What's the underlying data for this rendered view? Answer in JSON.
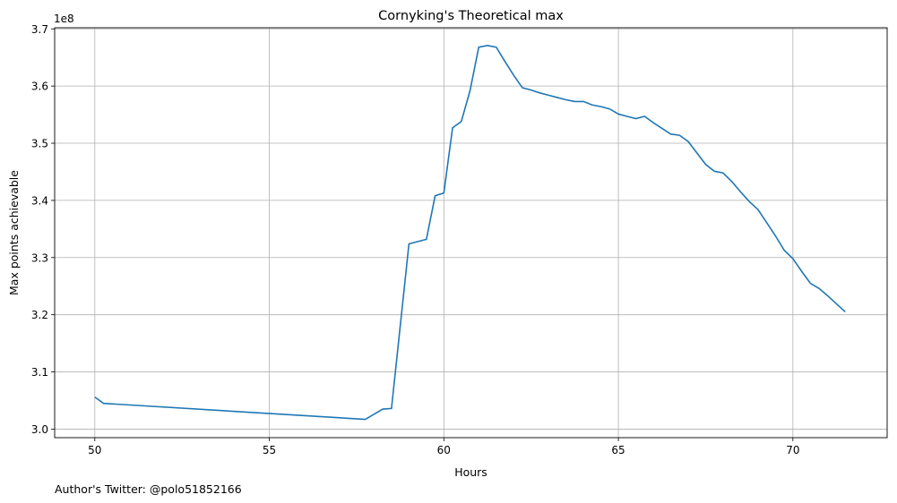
{
  "chart_data": {
    "type": "line",
    "title": "Cornyking's Theoretical max",
    "xlabel": "Hours",
    "ylabel": "Max points achievable",
    "y_offset_label": "1e8",
    "y_scale": 100000000,
    "xlim": [
      48.85,
      72.7
    ],
    "ylim": [
      2.985,
      3.702
    ],
    "xticks": [
      50,
      55,
      60,
      65,
      70
    ],
    "yticks": [
      3.0,
      3.1,
      3.2,
      3.3,
      3.4,
      3.5,
      3.6,
      3.7
    ],
    "ytick_labels": [
      "3.0",
      "3.1",
      "3.2",
      "3.3",
      "3.4",
      "3.5",
      "3.6",
      "3.7"
    ],
    "grid": true,
    "line_color": "#1f77b4",
    "series": [
      {
        "x": [
          50.0,
          50.25,
          57.75,
          58.25,
          58.5,
          59.0,
          59.5,
          59.75,
          60.0,
          60.25,
          60.5,
          60.75,
          61.0,
          61.25,
          61.5,
          61.75,
          62.0,
          62.25,
          62.5,
          62.75,
          63.0,
          63.25,
          63.5,
          63.75,
          64.0,
          64.25,
          64.5,
          64.75,
          65.0,
          65.25,
          65.5,
          65.75,
          66.0,
          66.25,
          66.5,
          66.75,
          67.0,
          67.25,
          67.5,
          67.75,
          68.0,
          68.25,
          68.5,
          68.75,
          69.0,
          69.25,
          69.5,
          69.75,
          70.0,
          70.25,
          70.5,
          70.75,
          71.0,
          71.25,
          71.5
        ],
        "y": [
          3.056,
          3.045,
          3.017,
          3.035,
          3.036,
          3.324,
          3.332,
          3.408,
          3.413,
          3.527,
          3.538,
          3.592,
          3.668,
          3.671,
          3.668,
          3.643,
          3.619,
          3.597,
          3.593,
          3.588,
          3.584,
          3.58,
          3.576,
          3.573,
          3.573,
          3.567,
          3.564,
          3.56,
          3.551,
          3.547,
          3.543,
          3.547,
          3.536,
          3.526,
          3.516,
          3.514,
          3.503,
          3.483,
          3.463,
          3.451,
          3.448,
          3.433,
          3.415,
          3.398,
          3.384,
          3.361,
          3.338,
          3.313,
          3.298,
          3.276,
          3.255,
          3.246,
          3.233,
          3.219,
          3.205
        ]
      }
    ]
  },
  "footer": {
    "credit": "Author's Twitter: @polo51852166"
  }
}
